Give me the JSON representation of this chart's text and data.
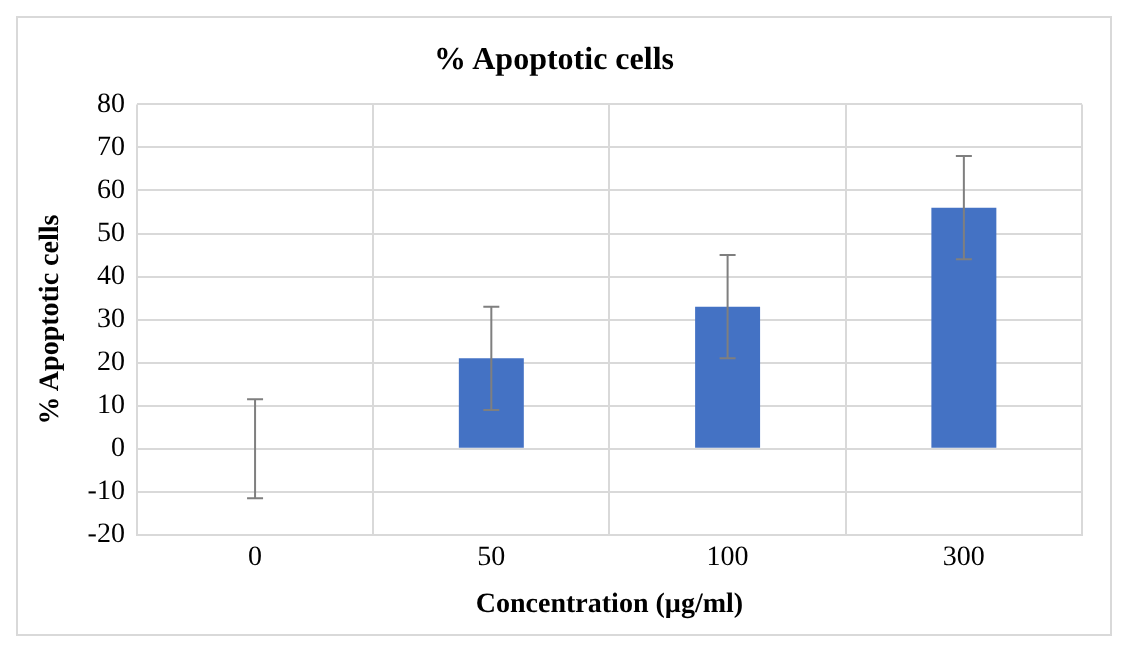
{
  "chart_data": {
    "type": "bar",
    "title": "% Apoptotic cells",
    "xlabel": "Concentration (µg/ml)",
    "ylabel": "% Apoptotic cells",
    "categories": [
      "0",
      "50",
      "100",
      "300"
    ],
    "values": [
      0,
      21,
      33,
      56
    ],
    "errors": [
      11.5,
      12,
      12,
      12
    ],
    "color": "#4472c4",
    "ylim": [
      -20,
      80
    ],
    "yticks": [
      -20,
      -10,
      0,
      10,
      20,
      30,
      40,
      50,
      60,
      70,
      80
    ],
    "grid": true
  }
}
